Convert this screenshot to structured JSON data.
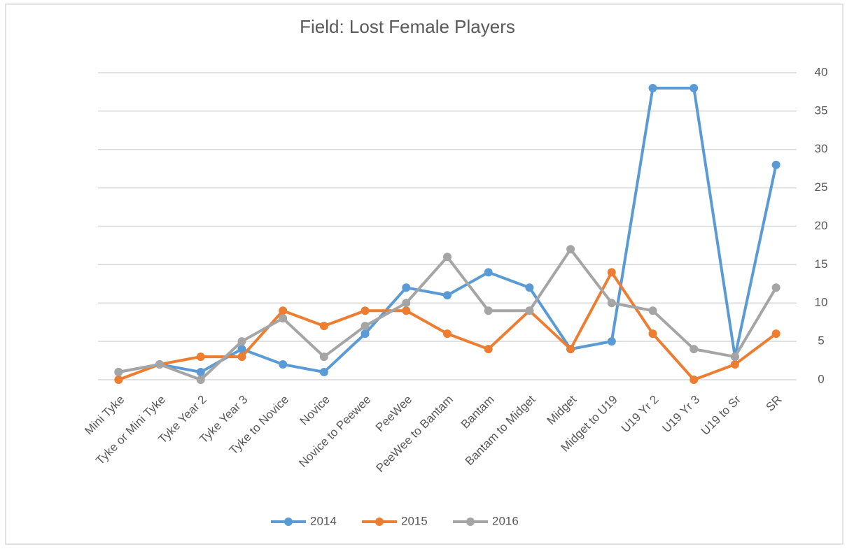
{
  "chart_data": {
    "type": "line",
    "title": "Field: Lost Female Players",
    "categories": [
      "Mini Tyke",
      "Tyke or Mini Tyke",
      "Tyke Year 2",
      "Tyke Year 3",
      "Tyke to Novice",
      "Novice",
      "Novice to Peewee",
      "PeeWee",
      "PeeWee to Bantam",
      "Bantam",
      "Bantam to Midget",
      "Midget",
      "Midget to U19",
      "U19 Yr 2",
      "U19 Yr 3",
      "U19 to Sr",
      "SR"
    ],
    "series": [
      {
        "name": "2014",
        "color": "#5b9bd5",
        "values": [
          1,
          2,
          1,
          4,
          2,
          1,
          6,
          12,
          11,
          14,
          12,
          4,
          5,
          38,
          38,
          3,
          28
        ]
      },
      {
        "name": "2015",
        "color": "#ed7d31",
        "values": [
          0,
          2,
          3,
          3,
          9,
          7,
          9,
          9,
          6,
          4,
          9,
          4,
          14,
          6,
          0,
          2,
          6
        ]
      },
      {
        "name": "2016",
        "color": "#a5a5a5",
        "values": [
          1,
          2,
          0,
          5,
          8,
          3,
          7,
          10,
          16,
          9,
          9,
          17,
          10,
          9,
          4,
          3,
          12
        ]
      }
    ],
    "ylim": [
      0,
      40
    ],
    "yticks": [
      0,
      5,
      10,
      15,
      20,
      25,
      30,
      35,
      40
    ],
    "y_axis_side": "right",
    "grid": true,
    "legend": "bottom"
  }
}
